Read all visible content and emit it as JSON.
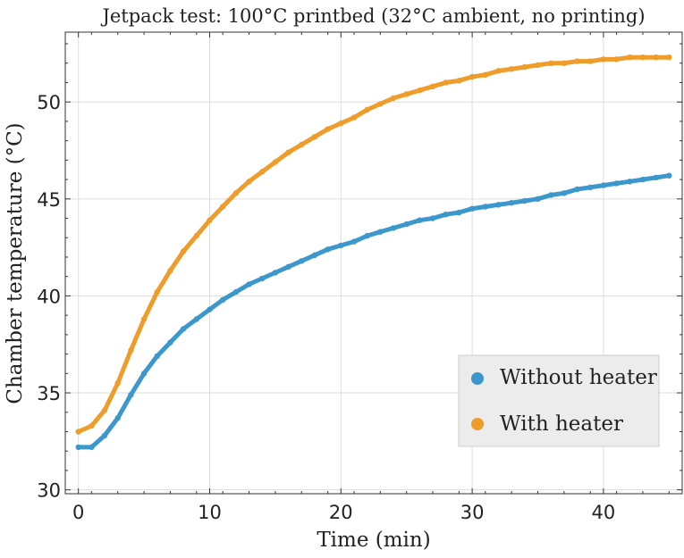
{
  "chart_data": {
    "type": "scatter",
    "title": "Jetpack test: 100°C printbed (32°C ambient, no printing)",
    "xlabel": "Time (min)",
    "ylabel": "Chamber temperature (°C)",
    "xlim": [
      -1,
      46
    ],
    "ylim": [
      29.8,
      53.6
    ],
    "xticks": [
      0,
      10,
      20,
      30,
      40
    ],
    "yticks": [
      30,
      35,
      40,
      45,
      50
    ],
    "grid": true,
    "legend_position": "lower-right",
    "series": [
      {
        "name": "Without heater",
        "color": "#3b97cc",
        "x": [
          0,
          1,
          2,
          3,
          4,
          5,
          6,
          7,
          8,
          9,
          10,
          11,
          12,
          13,
          14,
          15,
          16,
          17,
          18,
          19,
          20,
          21,
          22,
          23,
          24,
          25,
          26,
          27,
          28,
          29,
          30,
          31,
          32,
          33,
          34,
          35,
          36,
          37,
          38,
          39,
          40,
          41,
          42,
          43,
          44,
          45
        ],
        "y": [
          32.2,
          32.2,
          32.8,
          33.7,
          34.9,
          36.0,
          36.9,
          37.6,
          38.3,
          38.8,
          39.3,
          39.8,
          40.2,
          40.6,
          40.9,
          41.2,
          41.5,
          41.8,
          42.1,
          42.4,
          42.6,
          42.8,
          43.1,
          43.3,
          43.5,
          43.7,
          43.9,
          44.0,
          44.2,
          44.3,
          44.5,
          44.6,
          44.7,
          44.8,
          44.9,
          45.0,
          45.2,
          45.3,
          45.5,
          45.6,
          45.7,
          45.8,
          45.9,
          46.0,
          46.1,
          46.2
        ]
      },
      {
        "name": "With heater",
        "color": "#ee9c2a",
        "x": [
          0,
          1,
          2,
          3,
          4,
          5,
          6,
          7,
          8,
          9,
          10,
          11,
          12,
          13,
          14,
          15,
          16,
          17,
          18,
          19,
          20,
          21,
          22,
          23,
          24,
          25,
          26,
          27,
          28,
          29,
          30,
          31,
          32,
          33,
          34,
          35,
          36,
          37,
          38,
          39,
          40,
          41,
          42,
          43,
          44,
          45
        ],
        "y": [
          33.0,
          33.3,
          34.1,
          35.5,
          37.2,
          38.8,
          40.2,
          41.3,
          42.3,
          43.1,
          43.9,
          44.6,
          45.3,
          45.9,
          46.4,
          46.9,
          47.4,
          47.8,
          48.2,
          48.6,
          48.9,
          49.2,
          49.6,
          49.9,
          50.2,
          50.4,
          50.6,
          50.8,
          51.0,
          51.1,
          51.3,
          51.4,
          51.6,
          51.7,
          51.8,
          51.9,
          52.0,
          52.0,
          52.1,
          52.1,
          52.2,
          52.2,
          52.3,
          52.3,
          52.3,
          52.3
        ]
      }
    ]
  }
}
